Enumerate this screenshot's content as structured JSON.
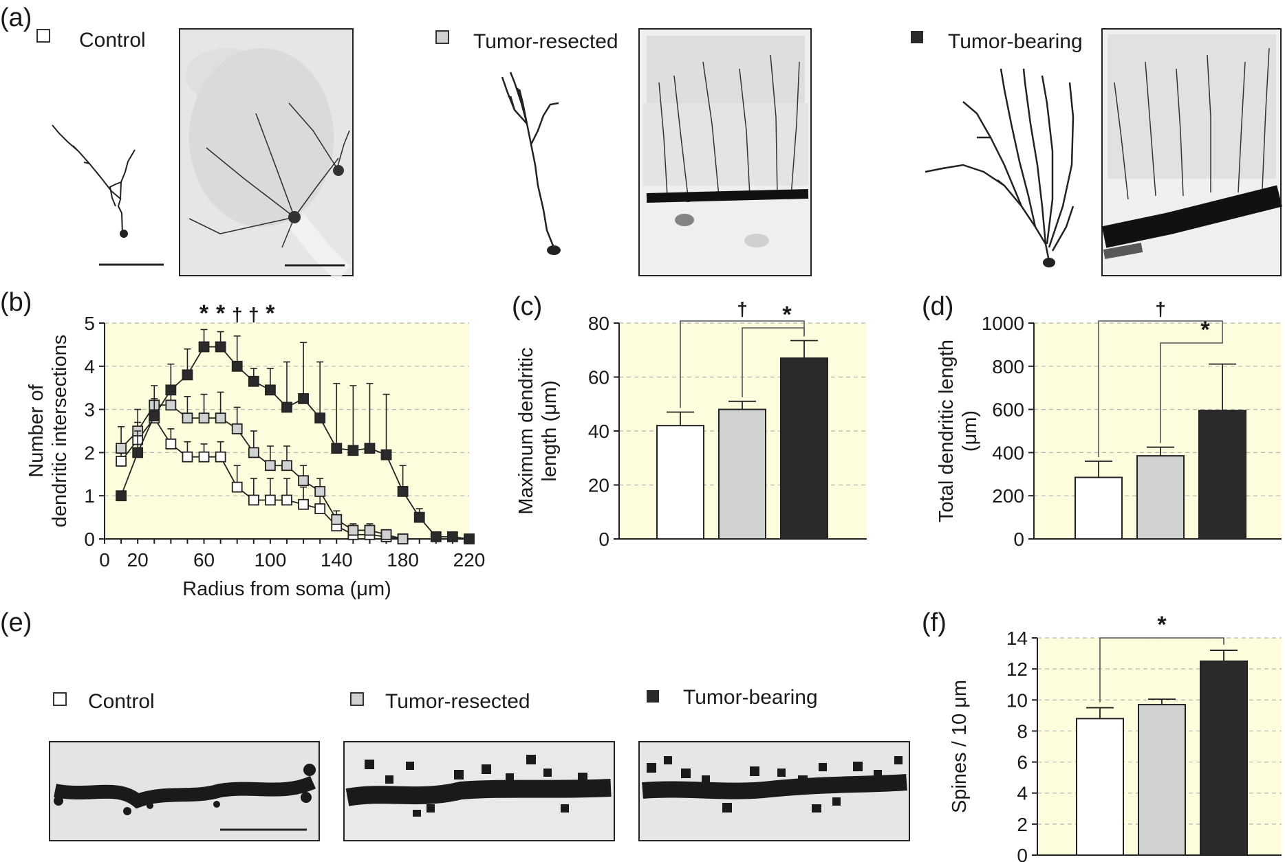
{
  "panels": {
    "a": {
      "label": "(a)",
      "groups": [
        {
          "name": "Control",
          "swatch": "#ffffff"
        },
        {
          "name": "Tumor-resected",
          "swatch": "#d0d2d2"
        },
        {
          "name": "Tumor-bearing",
          "swatch": "#2a2a2a"
        }
      ]
    },
    "b": {
      "label": "(b)"
    },
    "c": {
      "label": "(c)"
    },
    "d": {
      "label": "(d)"
    },
    "e": {
      "label": "(e)",
      "groups": [
        {
          "name": "Control",
          "swatch": "#ffffff"
        },
        {
          "name": "Tumor-resected",
          "swatch": "#d0d2d2"
        },
        {
          "name": "Tumor-bearing",
          "swatch": "#2a2a2a"
        }
      ]
    },
    "f": {
      "label": "(f)"
    }
  },
  "colors": {
    "plot_background": "#fdfcdc",
    "control": "#ffffff",
    "tumor_resected": "#d0d2d2",
    "tumor_bearing": "#2a2a2a",
    "grid": "#b5b5b5"
  },
  "chart_data": [
    {
      "id": "b",
      "type": "line",
      "title": "",
      "xlabel": "Radius from soma (μm)",
      "ylabel_lines": [
        "Number of",
        "dendritic intersections"
      ],
      "xlim": [
        0,
        220
      ],
      "ylim": [
        0,
        5
      ],
      "xticks": [
        0,
        20,
        60,
        100,
        140,
        180,
        220
      ],
      "yticks": [
        0,
        1,
        2,
        3,
        4,
        5
      ],
      "grid": "horizontal dashed",
      "x": [
        10,
        20,
        30,
        40,
        50,
        60,
        70,
        80,
        90,
        100,
        110,
        120,
        130,
        140,
        150,
        160,
        170,
        180,
        190,
        200,
        210,
        220
      ],
      "series": [
        {
          "name": "Control",
          "values": [
            1.8,
            2.3,
            2.8,
            2.2,
            1.9,
            1.9,
            1.9,
            1.2,
            0.9,
            0.9,
            0.9,
            0.8,
            0.7,
            0.3,
            0.1,
            0.1,
            0.05,
            0.0,
            null,
            null,
            null,
            null
          ],
          "errors": [
            0.4,
            0.4,
            0.3,
            0.35,
            0.35,
            0.3,
            0.35,
            0.5,
            0.5,
            0.5,
            0.5,
            0.4,
            0.4,
            0.2,
            0.1,
            0.1,
            0.05,
            0.0,
            null,
            null,
            null,
            null
          ]
        },
        {
          "name": "Tumor-resected",
          "values": [
            2.1,
            2.5,
            3.1,
            3.1,
            2.8,
            2.8,
            2.8,
            2.55,
            2.0,
            1.7,
            1.7,
            1.35,
            1.1,
            0.45,
            0.2,
            0.2,
            0.1,
            0.0,
            null,
            null,
            null,
            null
          ],
          "errors": [
            0.5,
            0.5,
            0.45,
            0.45,
            0.5,
            0.55,
            0.6,
            0.5,
            0.5,
            0.45,
            0.45,
            0.35,
            0.3,
            0.2,
            0.15,
            0.15,
            0.1,
            0.0,
            null,
            null,
            null,
            null
          ],
          "color": "#d0d2d2"
        },
        {
          "name": "Tumor-bearing",
          "values": [
            1.0,
            2.0,
            2.85,
            3.45,
            3.8,
            4.45,
            4.45,
            4.0,
            3.65,
            3.45,
            3.05,
            3.25,
            2.8,
            2.1,
            2.05,
            2.1,
            1.95,
            1.1,
            0.5,
            0.05,
            0.05,
            0.0
          ],
          "errors": [
            0.0,
            0.5,
            0.4,
            0.6,
            0.6,
            0.4,
            0.35,
            0.7,
            0.3,
            0.5,
            1.05,
            1.3,
            1.3,
            1.5,
            1.5,
            1.5,
            1.4,
            0.6,
            0.2,
            0.0,
            0.0,
            0.0
          ],
          "color": "#2a2a2a"
        }
      ],
      "significance": [
        {
          "x": 60,
          "mark": "*"
        },
        {
          "x": 70,
          "mark": "*"
        },
        {
          "x": 80,
          "mark": "†"
        },
        {
          "x": 90,
          "mark": "†"
        },
        {
          "x": 100,
          "mark": "*"
        }
      ]
    },
    {
      "id": "c",
      "type": "bar",
      "title": "",
      "ylabel_lines": [
        "Maximum dendritic",
        "length (μm)"
      ],
      "categories": [
        "Control",
        "Tumor-resected",
        "Tumor-bearing"
      ],
      "values": [
        42,
        48,
        67
      ],
      "errors": [
        5,
        3,
        6.5
      ],
      "ylim": [
        0,
        80
      ],
      "yticks": [
        0,
        20,
        40,
        60,
        80
      ],
      "grid": "horizontal dashed",
      "brackets": [
        {
          "from": 0,
          "to": 2,
          "mark": "†"
        },
        {
          "from": 1,
          "to": 2,
          "mark": "*"
        }
      ]
    },
    {
      "id": "d",
      "type": "bar",
      "title": "",
      "ylabel_lines": [
        "Total dendritic length",
        "(μm)"
      ],
      "categories": [
        "Control",
        "Tumor-resected",
        "Tumor-bearing"
      ],
      "values": [
        285,
        385,
        595
      ],
      "errors": [
        75,
        40,
        215
      ],
      "ylim": [
        0,
        1000
      ],
      "yticks": [
        0,
        200,
        400,
        600,
        800,
        1000
      ],
      "grid": "horizontal dashed",
      "brackets": [
        {
          "from": 0,
          "to": 2,
          "mark": "†"
        },
        {
          "from": 1,
          "to": 2,
          "mark": "*"
        }
      ]
    },
    {
      "id": "f",
      "type": "bar",
      "title": "",
      "ylabel_lines": [
        "Spines / 10 μm"
      ],
      "categories": [
        "Control",
        "Tumor-resected",
        "Tumor-bearing"
      ],
      "values": [
        8.8,
        9.7,
        12.5
      ],
      "errors": [
        0.7,
        0.35,
        0.7
      ],
      "ylim": [
        0,
        14
      ],
      "yticks": [
        0,
        2,
        4,
        6,
        8,
        10,
        12,
        14
      ],
      "grid": "horizontal dashed",
      "brackets": [
        {
          "from": 0,
          "to": 2,
          "mark": "*"
        }
      ]
    }
  ]
}
